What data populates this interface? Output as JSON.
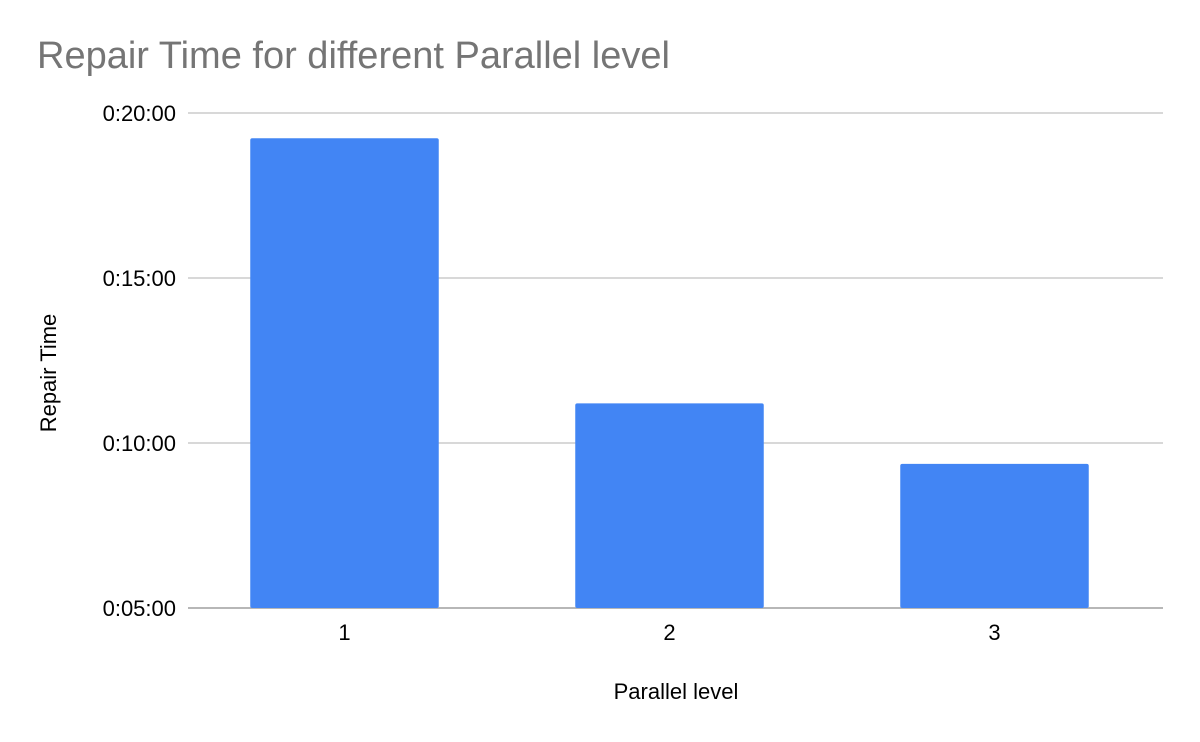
{
  "chart_data": {
    "type": "bar",
    "title": "Repair Time for different Parallel level",
    "xlabel": "Parallel level",
    "ylabel": "Repair Time",
    "categories": [
      "1",
      "2",
      "3"
    ],
    "values": [
      "0:19:14",
      "0:11:12",
      "0:09:22"
    ],
    "ylim": [
      "0:05:00",
      "0:20:00"
    ],
    "yticks": [
      "0:05:00",
      "0:10:00",
      "0:15:00",
      "0:20:00"
    ],
    "grid": true,
    "legend": "none",
    "bar_color": "#4285f4"
  }
}
